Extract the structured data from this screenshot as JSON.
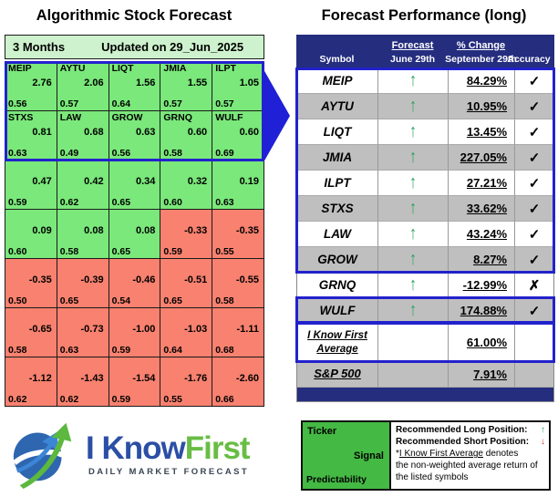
{
  "left_panel": {
    "title": "Algorithmic Stock Forecast",
    "period_label": "3 Months",
    "updated_label": "Updated on 29_Jun_2025",
    "heat_green": "#7AE87A",
    "heat_red": "#F8816F",
    "highlight_border": "#2222CC",
    "cells": [
      {
        "t": "MEIP",
        "s": "2.76",
        "p": "0.56",
        "c": "green"
      },
      {
        "t": "AYTU",
        "s": "2.06",
        "p": "0.57",
        "c": "green"
      },
      {
        "t": "LIQT",
        "s": "1.56",
        "p": "0.64",
        "c": "green"
      },
      {
        "t": "JMIA",
        "s": "1.55",
        "p": "0.57",
        "c": "green"
      },
      {
        "t": "ILPT",
        "s": "1.05",
        "p": "0.57",
        "c": "green"
      },
      {
        "t": "STXS",
        "s": "0.81",
        "p": "0.63",
        "c": "green"
      },
      {
        "t": "LAW",
        "s": "0.68",
        "p": "0.49",
        "c": "green"
      },
      {
        "t": "GROW",
        "s": "0.63",
        "p": "0.56",
        "c": "green"
      },
      {
        "t": "GRNQ",
        "s": "0.60",
        "p": "0.58",
        "c": "green"
      },
      {
        "t": "WULF",
        "s": "0.60",
        "p": "0.69",
        "c": "green"
      },
      {
        "t": "",
        "s": "0.47",
        "p": "0.59",
        "c": "green"
      },
      {
        "t": "",
        "s": "0.42",
        "p": "0.62",
        "c": "green"
      },
      {
        "t": "",
        "s": "0.34",
        "p": "0.65",
        "c": "green"
      },
      {
        "t": "",
        "s": "0.32",
        "p": "0.60",
        "c": "green"
      },
      {
        "t": "",
        "s": "0.19",
        "p": "0.63",
        "c": "green"
      },
      {
        "t": "",
        "s": "0.09",
        "p": "0.60",
        "c": "green"
      },
      {
        "t": "",
        "s": "0.08",
        "p": "0.58",
        "c": "green"
      },
      {
        "t": "",
        "s": "0.08",
        "p": "0.65",
        "c": "green"
      },
      {
        "t": "",
        "s": "-0.33",
        "p": "0.59",
        "c": "red"
      },
      {
        "t": "",
        "s": "-0.35",
        "p": "0.55",
        "c": "red"
      },
      {
        "t": "",
        "s": "-0.35",
        "p": "0.50",
        "c": "red"
      },
      {
        "t": "",
        "s": "-0.39",
        "p": "0.65",
        "c": "red"
      },
      {
        "t": "",
        "s": "-0.46",
        "p": "0.54",
        "c": "red"
      },
      {
        "t": "",
        "s": "-0.51",
        "p": "0.65",
        "c": "red"
      },
      {
        "t": "",
        "s": "-0.55",
        "p": "0.58",
        "c": "red"
      },
      {
        "t": "",
        "s": "-0.65",
        "p": "0.58",
        "c": "red"
      },
      {
        "t": "",
        "s": "-0.73",
        "p": "0.63",
        "c": "red"
      },
      {
        "t": "",
        "s": "-1.00",
        "p": "0.59",
        "c": "red"
      },
      {
        "t": "",
        "s": "-1.03",
        "p": "0.64",
        "c": "red"
      },
      {
        "t": "",
        "s": "-1.11",
        "p": "0.68",
        "c": "red"
      },
      {
        "t": "",
        "s": "-1.12",
        "p": "0.62",
        "c": "red"
      },
      {
        "t": "",
        "s": "-1.43",
        "p": "0.62",
        "c": "red"
      },
      {
        "t": "",
        "s": "-1.54",
        "p": "0.59",
        "c": "red"
      },
      {
        "t": "",
        "s": "-1.76",
        "p": "0.55",
        "c": "red"
      },
      {
        "t": "",
        "s": "-2.60",
        "p": "0.66",
        "c": "red"
      }
    ]
  },
  "right_panel": {
    "title": "Forecast Performance (long)",
    "header_bg": "#252D7E",
    "gray_row_bg": "#BFBFBF",
    "header": {
      "symbol": "Symbol",
      "forecast": "Forecast",
      "forecast_date": "June 29th",
      "change": "% Change",
      "change_date": "September 29th",
      "accuracy": "Accuracy"
    },
    "glyphs": {
      "check": "✓",
      "cross": "✗",
      "up_arrow": "↑",
      "down_arrow": "↓"
    },
    "rows": [
      {
        "symbol": "MEIP",
        "signal": "up",
        "change": "84.29%",
        "accurate": true,
        "shade": "white"
      },
      {
        "symbol": "AYTU",
        "signal": "up",
        "change": "10.95%",
        "accurate": true,
        "shade": "gray"
      },
      {
        "symbol": "LIQT",
        "signal": "up",
        "change": "13.45%",
        "accurate": true,
        "shade": "white"
      },
      {
        "symbol": "JMIA",
        "signal": "up",
        "change": "227.05%",
        "accurate": true,
        "shade": "gray"
      },
      {
        "symbol": "ILPT",
        "signal": "up",
        "change": "27.21%",
        "accurate": true,
        "shade": "white"
      },
      {
        "symbol": "STXS",
        "signal": "up",
        "change": "33.62%",
        "accurate": true,
        "shade": "gray"
      },
      {
        "symbol": "LAW",
        "signal": "up",
        "change": "43.24%",
        "accurate": true,
        "shade": "white"
      },
      {
        "symbol": "GROW",
        "signal": "up",
        "change": "8.27%",
        "accurate": true,
        "shade": "gray"
      },
      {
        "symbol": "GRNQ",
        "signal": "up",
        "change": "-12.99%",
        "accurate": false,
        "shade": "white"
      },
      {
        "symbol": "WULF",
        "signal": "up",
        "change": "174.88%",
        "accurate": true,
        "shade": "gray"
      }
    ],
    "ikf_row": {
      "label_line1": "I Know First",
      "label_line2": "Average",
      "change": "61.00%"
    },
    "sp_row": {
      "label": "S&P 500",
      "change": "7.91%"
    }
  },
  "legend": {
    "ticker_label": "Ticker",
    "signal_label": "Signal",
    "predictability_label": "Predictability",
    "long_label": "Recommended Long Position:",
    "short_label": "Recommended Short Position:",
    "note_prefix": "*",
    "note_underlined": "I Know First Average",
    "note_rest": " denotes",
    "note_line2": "the non-weighted average return of",
    "note_line3": "the listed symbols",
    "green_bg": "#44B944"
  },
  "logo": {
    "brand_blue_text": "I Know",
    "brand_green_text": "First",
    "tagline": "DAILY MARKET FORECAST",
    "blue": "#2B4FA5",
    "green": "#68BD44"
  },
  "chart_data": [
    {
      "type": "heatmap",
      "title": "Algorithmic Stock Forecast",
      "subtitle": "3 Months — Updated on 29_Jun_2025",
      "tickers": [
        "MEIP",
        "AYTU",
        "LIQT",
        "JMIA",
        "ILPT",
        "STXS",
        "LAW",
        "GROW",
        "GRNQ",
        "WULF"
      ],
      "signal_rows": [
        [
          2.76,
          2.06,
          1.56,
          1.55,
          1.05
        ],
        [
          0.81,
          0.68,
          0.63,
          0.6,
          0.6
        ],
        [
          0.47,
          0.42,
          0.34,
          0.32,
          0.19
        ],
        [
          0.09,
          0.08,
          0.08,
          -0.33,
          -0.35
        ],
        [
          -0.35,
          -0.39,
          -0.46,
          -0.51,
          -0.55
        ],
        [
          -0.65,
          -0.73,
          -1.0,
          -1.03,
          -1.11
        ],
        [
          -1.12,
          -1.43,
          -1.54,
          -1.76,
          -2.6
        ]
      ],
      "predictability_rows": [
        [
          0.56,
          0.57,
          0.64,
          0.57,
          0.57
        ],
        [
          0.63,
          0.49,
          0.56,
          0.58,
          0.69
        ],
        [
          0.59,
          0.62,
          0.65,
          0.6,
          0.63
        ],
        [
          0.6,
          0.58,
          0.65,
          0.59,
          0.55
        ],
        [
          0.5,
          0.65,
          0.54,
          0.65,
          0.58
        ],
        [
          0.58,
          0.63,
          0.59,
          0.64,
          0.68
        ],
        [
          0.62,
          0.62,
          0.59,
          0.55,
          0.66
        ]
      ],
      "color_rule": "green = positive signal, red = negative signal"
    },
    {
      "type": "table",
      "title": "Forecast Performance (long)",
      "columns": [
        "Symbol",
        "Forecast June 29th",
        "% Change September 29th",
        "Accuracy"
      ],
      "rows": [
        [
          "MEIP",
          "up",
          "84.29%",
          "correct"
        ],
        [
          "AYTU",
          "up",
          "10.95%",
          "correct"
        ],
        [
          "LIQT",
          "up",
          "13.45%",
          "correct"
        ],
        [
          "JMIA",
          "up",
          "227.05%",
          "correct"
        ],
        [
          "ILPT",
          "up",
          "27.21%",
          "correct"
        ],
        [
          "STXS",
          "up",
          "33.62%",
          "correct"
        ],
        [
          "LAW",
          "up",
          "43.24%",
          "correct"
        ],
        [
          "GROW",
          "up",
          "8.27%",
          "correct"
        ],
        [
          "GRNQ",
          "up",
          "-12.99%",
          "incorrect"
        ],
        [
          "WULF",
          "up",
          "174.88%",
          "correct"
        ],
        [
          "I Know First Average",
          "",
          "61.00%",
          ""
        ],
        [
          "S&P 500",
          "",
          "7.91%",
          ""
        ]
      ]
    }
  ]
}
